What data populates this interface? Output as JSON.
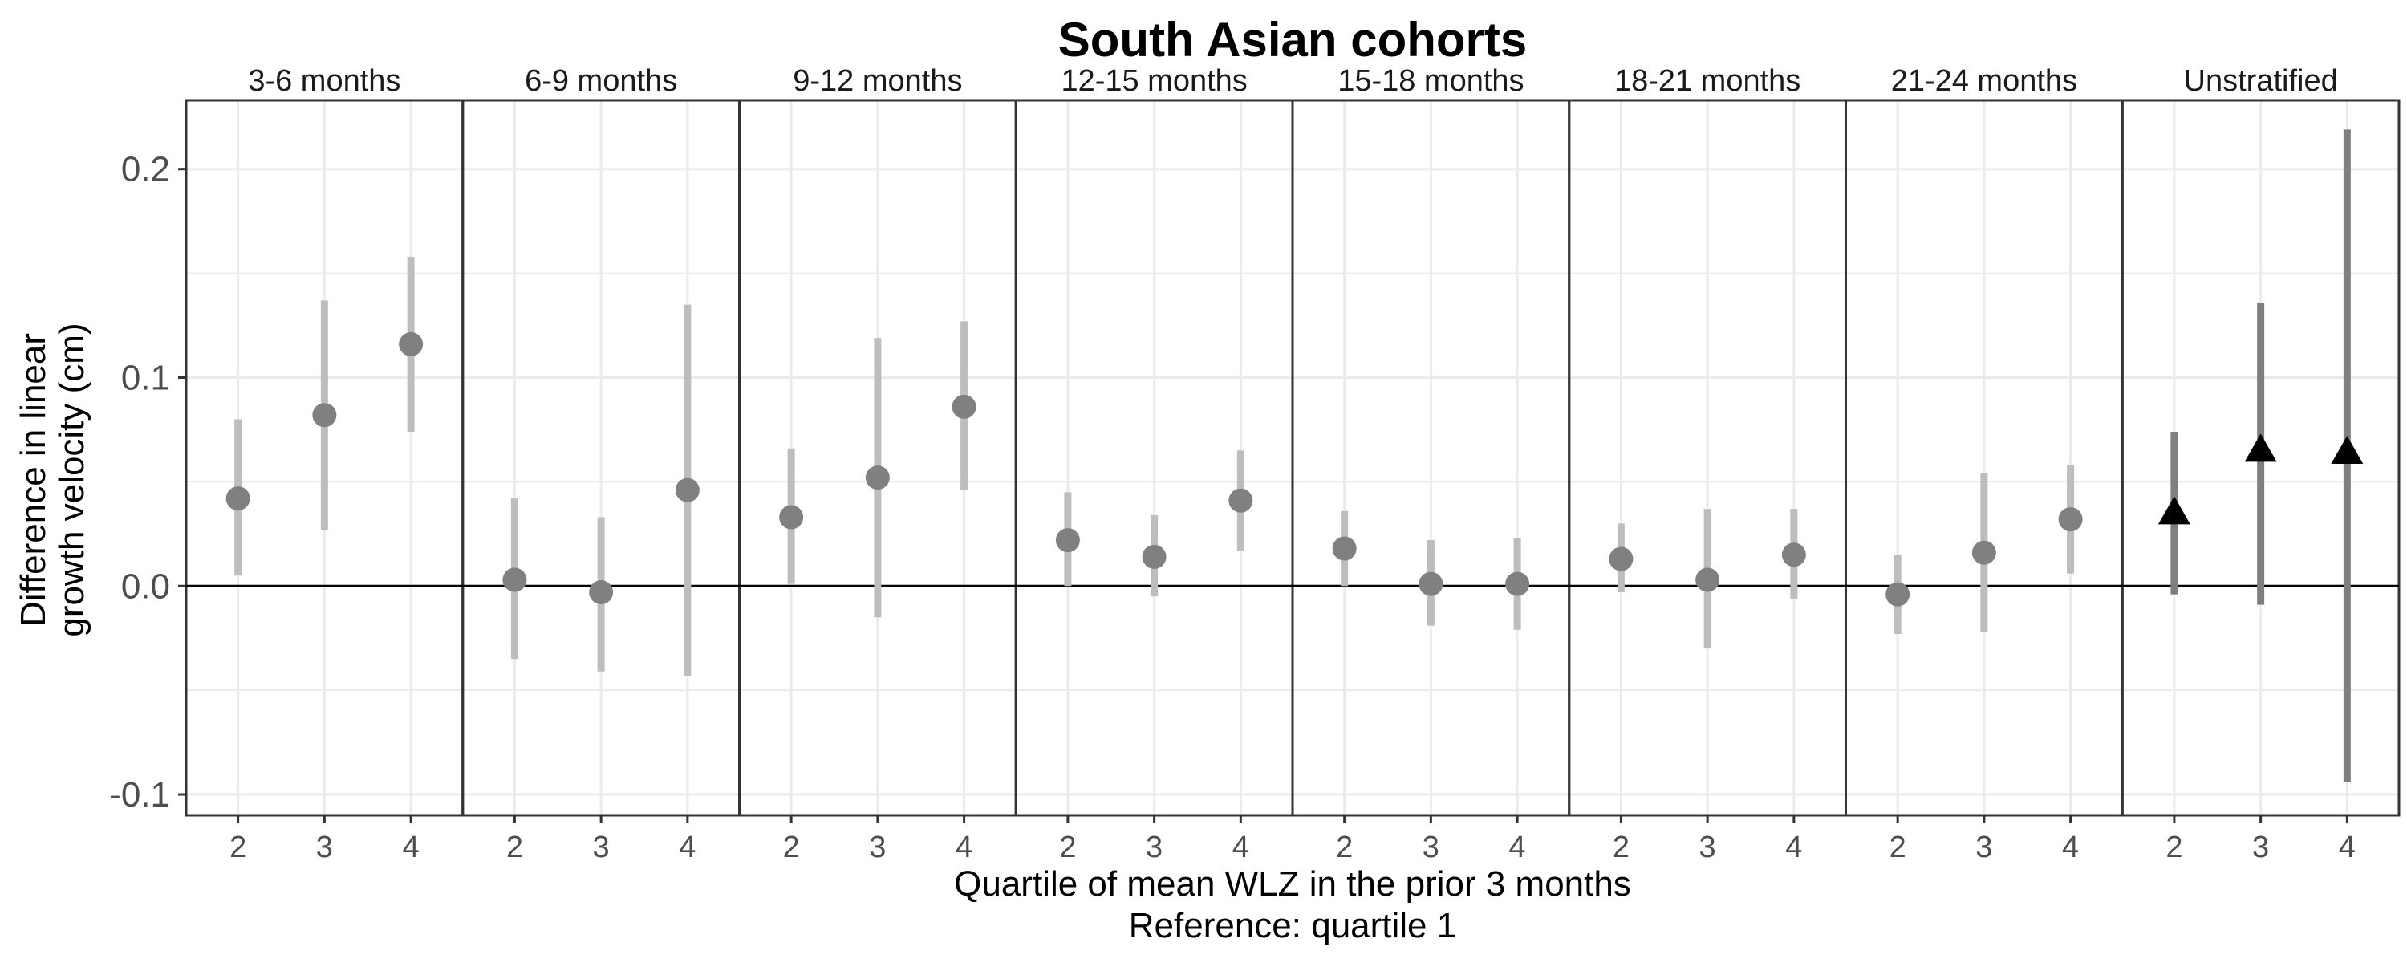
{
  "chart_data": {
    "type": "scatter",
    "title": "South Asian cohorts",
    "xlabel": [
      "Quartile of mean WLZ in the prior 3 months",
      "Reference: quartile 1"
    ],
    "ylabel": [
      "Difference in linear",
      "growth velocity (cm)"
    ],
    "ylim": [
      -0.11,
      0.233
    ],
    "yticks": [
      -0.1,
      0.0,
      0.1,
      0.2
    ],
    "ytick_labels": [
      "-0.1",
      "0.0",
      "0.1",
      "0.2"
    ],
    "reference_line": 0.0,
    "x_categories": [
      "2",
      "3",
      "4"
    ],
    "grid": true,
    "colors": {
      "stratified_point": "#808080",
      "stratified_ci": "#bdbdbd",
      "unstratified_point": "#000000",
      "unstratified_ci": "#7f7f7f",
      "grid": "#ebebeb",
      "frame": "#333333"
    },
    "panels": [
      {
        "label": "3-6 months",
        "marker": "circle",
        "points": [
          {
            "x": "2",
            "y": 0.042,
            "lo": 0.005,
            "hi": 0.08
          },
          {
            "x": "3",
            "y": 0.082,
            "lo": 0.027,
            "hi": 0.137
          },
          {
            "x": "4",
            "y": 0.116,
            "lo": 0.074,
            "hi": 0.158
          }
        ]
      },
      {
        "label": "6-9 months",
        "marker": "circle",
        "points": [
          {
            "x": "2",
            "y": 0.003,
            "lo": -0.035,
            "hi": 0.042
          },
          {
            "x": "3",
            "y": -0.003,
            "lo": -0.041,
            "hi": 0.033
          },
          {
            "x": "4",
            "y": 0.046,
            "lo": -0.043,
            "hi": 0.135
          }
        ]
      },
      {
        "label": "9-12 months",
        "marker": "circle",
        "points": [
          {
            "x": "2",
            "y": 0.033,
            "lo": 0.001,
            "hi": 0.066
          },
          {
            "x": "3",
            "y": 0.052,
            "lo": -0.015,
            "hi": 0.119
          },
          {
            "x": "4",
            "y": 0.086,
            "lo": 0.046,
            "hi": 0.127
          }
        ]
      },
      {
        "label": "12-15 months",
        "marker": "circle",
        "points": [
          {
            "x": "2",
            "y": 0.022,
            "lo": 0.0,
            "hi": 0.045
          },
          {
            "x": "3",
            "y": 0.014,
            "lo": -0.005,
            "hi": 0.034
          },
          {
            "x": "4",
            "y": 0.041,
            "lo": 0.017,
            "hi": 0.065
          }
        ]
      },
      {
        "label": "15-18 months",
        "marker": "circle",
        "points": [
          {
            "x": "2",
            "y": 0.018,
            "lo": 0.0,
            "hi": 0.036
          },
          {
            "x": "3",
            "y": 0.001,
            "lo": -0.019,
            "hi": 0.022
          },
          {
            "x": "4",
            "y": 0.001,
            "lo": -0.021,
            "hi": 0.023
          }
        ]
      },
      {
        "label": "18-21 months",
        "marker": "circle",
        "points": [
          {
            "x": "2",
            "y": 0.013,
            "lo": -0.003,
            "hi": 0.03
          },
          {
            "x": "3",
            "y": 0.003,
            "lo": -0.03,
            "hi": 0.037
          },
          {
            "x": "4",
            "y": 0.015,
            "lo": -0.006,
            "hi": 0.037
          }
        ]
      },
      {
        "label": "21-24 months",
        "marker": "circle",
        "points": [
          {
            "x": "2",
            "y": -0.004,
            "lo": -0.023,
            "hi": 0.015
          },
          {
            "x": "3",
            "y": 0.016,
            "lo": -0.022,
            "hi": 0.054
          },
          {
            "x": "4",
            "y": 0.032,
            "lo": 0.006,
            "hi": 0.058
          }
        ]
      },
      {
        "label": "Unstratified",
        "marker": "triangle",
        "points": [
          {
            "x": "2",
            "y": 0.035,
            "lo": -0.004,
            "hi": 0.074
          },
          {
            "x": "3",
            "y": 0.065,
            "lo": -0.009,
            "hi": 0.136
          },
          {
            "x": "4",
            "y": 0.064,
            "lo": -0.094,
            "hi": 0.219
          }
        ]
      }
    ]
  }
}
